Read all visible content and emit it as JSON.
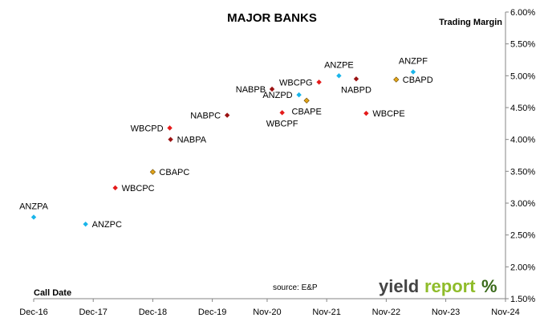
{
  "chart_data": {
    "type": "scatter",
    "title": "MAJOR BANKS",
    "ylabel": "Trading Margin",
    "xlabel": "Call Date",
    "source": "source: E&P",
    "logo": "yieldreport %",
    "y_axis": {
      "min": 1.5,
      "max": 6.0,
      "step": 0.5,
      "position": "right",
      "tick_labels": [
        "1.50%",
        "2.00%",
        "2.50%",
        "3.00%",
        "3.50%",
        "4.00%",
        "4.50%",
        "5.00%",
        "5.50%",
        "6.00%"
      ]
    },
    "x_axis": {
      "min": "2016-12",
      "max": "2024-11",
      "tick_labels": [
        "Dec-16",
        "Dec-17",
        "Dec-18",
        "Dec-19",
        "Nov-20",
        "Nov-21",
        "Nov-22",
        "Nov-23",
        "Nov-24"
      ],
      "tick_dates": [
        "2016-12",
        "2017-12",
        "2018-12",
        "2019-12",
        "2020-11",
        "2021-11",
        "2022-11",
        "2023-11",
        "2024-11"
      ]
    },
    "grid": false,
    "colors": {
      "ANZ": "#19b5ea",
      "WBC": "#e41b1b",
      "NAB": "#9b1212",
      "CBA": "#e2a419"
    },
    "points": [
      {
        "label": "ANZPA",
        "issuer": "ANZ",
        "date": "2016-12-01",
        "y": 2.78,
        "label_pos": "above"
      },
      {
        "label": "ANZPC",
        "issuer": "ANZ",
        "date": "2017-10-15",
        "y": 2.67,
        "label_pos": "right"
      },
      {
        "label": "WBCPC",
        "issuer": "WBC",
        "date": "2018-04-15",
        "y": 3.24,
        "label_pos": "right"
      },
      {
        "label": "CBAPC",
        "issuer": "CBA",
        "date": "2018-12-01",
        "y": 3.49,
        "label_pos": "right"
      },
      {
        "label": "WBCPD",
        "issuer": "WBC",
        "date": "2019-03-15",
        "y": 4.18,
        "label_pos": "left"
      },
      {
        "label": "NABPA",
        "issuer": "NAB",
        "date": "2019-03-20",
        "y": 4.0,
        "label_pos": "right"
      },
      {
        "label": "NABPC",
        "issuer": "NAB",
        "date": "2020-03-01",
        "y": 4.38,
        "label_pos": "left"
      },
      {
        "label": "NABPB",
        "issuer": "NAB",
        "date": "2020-12-01",
        "y": 4.79,
        "label_pos": "left"
      },
      {
        "label": "WBCPF",
        "issuer": "WBC",
        "date": "2021-02-01",
        "y": 4.42,
        "label_pos": "below"
      },
      {
        "label": "ANZPD",
        "issuer": "ANZ",
        "date": "2021-05-15",
        "y": 4.7,
        "label_pos": "left"
      },
      {
        "label": "CBAPE",
        "issuer": "CBA",
        "date": "2021-07-01",
        "y": 4.61,
        "label_pos": "below"
      },
      {
        "label": "WBCPG",
        "issuer": "WBC",
        "date": "2021-09-15",
        "y": 4.9,
        "label_pos": "left"
      },
      {
        "label": "ANZPE",
        "issuer": "ANZ",
        "date": "2022-01-15",
        "y": 5.0,
        "label_pos": "above"
      },
      {
        "label": "NABPD",
        "issuer": "NAB",
        "date": "2022-05-01",
        "y": 4.95,
        "label_pos": "below"
      },
      {
        "label": "WBCPE",
        "issuer": "WBC",
        "date": "2022-07-01",
        "y": 4.41,
        "label_pos": "right"
      },
      {
        "label": "CBAPD",
        "issuer": "CBA",
        "date": "2023-01-01",
        "y": 4.94,
        "label_pos": "right"
      },
      {
        "label": "ANZPF",
        "issuer": "ANZ",
        "date": "2023-04-15",
        "y": 5.06,
        "label_pos": "above"
      }
    ]
  }
}
